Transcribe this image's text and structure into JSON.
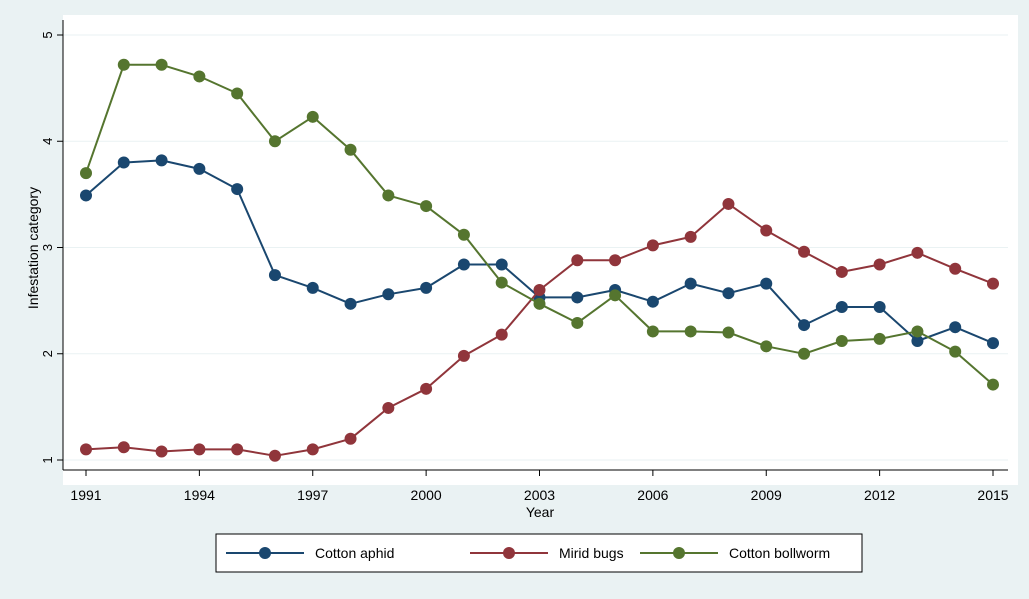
{
  "chart_data": {
    "type": "line",
    "title": "",
    "xlabel": "Year",
    "ylabel": "Infestation category",
    "x": [
      1991,
      1992,
      1993,
      1994,
      1995,
      1996,
      1997,
      1998,
      1999,
      2000,
      2001,
      2002,
      2003,
      2004,
      2005,
      2006,
      2007,
      2008,
      2009,
      2010,
      2011,
      2012,
      2013,
      2014,
      2015
    ],
    "xticks": [
      1991,
      1994,
      1997,
      2000,
      2003,
      2006,
      2009,
      2012,
      2015
    ],
    "yticks": [
      1,
      2,
      3,
      4,
      5
    ],
    "xlim": [
      1991,
      2015
    ],
    "ylim": [
      1,
      5
    ],
    "grid": "horizontal",
    "legend_position": "bottom",
    "series": [
      {
        "name": "Cotton aphid",
        "color": "#1a476f",
        "values": [
          3.49,
          3.8,
          3.82,
          3.74,
          3.55,
          2.74,
          2.62,
          2.47,
          2.56,
          2.62,
          2.84,
          2.84,
          2.53,
          2.53,
          2.6,
          2.49,
          2.66,
          2.57,
          2.66,
          2.27,
          2.44,
          2.44,
          2.12,
          2.25,
          2.1
        ]
      },
      {
        "name": "Mirid bugs",
        "color": "#90353b",
        "values": [
          1.1,
          1.12,
          1.08,
          1.1,
          1.1,
          1.04,
          1.1,
          1.2,
          1.49,
          1.67,
          1.98,
          2.18,
          2.6,
          2.88,
          2.88,
          3.02,
          3.1,
          3.41,
          3.16,
          2.96,
          2.77,
          2.84,
          2.95,
          2.8,
          2.66
        ]
      },
      {
        "name": "Cotton bollworm",
        "color": "#55752f",
        "values": [
          3.7,
          4.72,
          4.72,
          4.61,
          4.45,
          4.0,
          4.23,
          3.92,
          3.49,
          3.39,
          3.12,
          2.67,
          2.47,
          2.29,
          2.55,
          2.21,
          2.21,
          2.2,
          2.07,
          2.0,
          2.12,
          2.14,
          2.21,
          2.02,
          1.71
        ]
      }
    ]
  }
}
